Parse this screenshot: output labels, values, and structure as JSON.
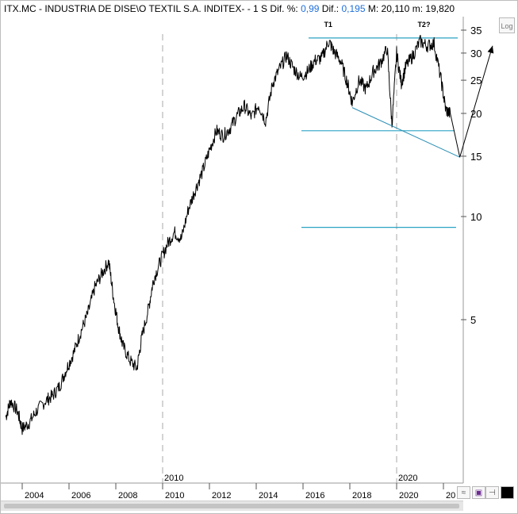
{
  "header": {
    "symbol": "ITX.MC - INDUSTRIA DE DISE\\O TEXTIL S.A. INDITEX-  -  1 S",
    "dif_pct_label": "Dif. %:",
    "dif_pct_value": "0,99",
    "dif_label": "Dif.:",
    "dif_value": "0,195",
    "max_label": "M:",
    "max_value": "20,110",
    "min_label": "m:",
    "min_value": "19,820"
  },
  "toolbar": {
    "log_label": "Log"
  },
  "chart_data": {
    "type": "line",
    "yscale": "log",
    "ylim": [
      2.2,
      38
    ],
    "y_ticks": [
      "35",
      "30",
      "25",
      "20",
      "15",
      "10",
      "5"
    ],
    "x_ticks": [
      "2004",
      "2006",
      "2008",
      "2010",
      "2012",
      "2014",
      "2016",
      "2018",
      "2020",
      "20"
    ],
    "x_marker_labels": [
      "2010",
      "2020"
    ],
    "annotations": [
      "T1",
      "T2?"
    ],
    "series": [
      {
        "x": [
          2003.3,
          2003.5,
          2003.8,
          2004.0,
          2004.3,
          2004.6,
          2005.0,
          2005.3,
          2005.6,
          2005.9,
          2006.2,
          2006.5,
          2006.8,
          2007.1,
          2007.4,
          2007.7,
          2007.9,
          2008.1,
          2008.3,
          2008.6,
          2008.9,
          2009.1,
          2009.4,
          2009.6,
          2009.9,
          2010.2,
          2010.5,
          2010.8,
          2011.1,
          2011.4,
          2011.7,
          2012.0,
          2012.3,
          2012.6,
          2012.9,
          2013.2,
          2013.5,
          2013.8,
          2014.1,
          2014.4,
          2014.7,
          2015.0,
          2015.3,
          2015.6,
          2015.9,
          2016.2,
          2016.5,
          2016.8,
          2017.1,
          2017.3,
          2017.6,
          2017.9,
          2018.1,
          2018.4,
          2018.7,
          2019.0,
          2019.3,
          2019.6,
          2019.8,
          2020.0,
          2020.2,
          2020.4,
          2020.7,
          2021.0,
          2021.3,
          2021.6,
          2021.9,
          2022.1,
          2022.3
        ],
        "values": [
          2.6,
          2.9,
          2.7,
          2.4,
          2.5,
          2.7,
          2.9,
          3.0,
          3.2,
          3.6,
          4.0,
          4.6,
          5.2,
          6.2,
          6.8,
          7.4,
          5.8,
          4.8,
          4.2,
          3.8,
          3.6,
          4.4,
          5.4,
          6.5,
          7.4,
          8.3,
          9.0,
          8.6,
          10.5,
          12.0,
          13.5,
          15.6,
          17.8,
          17.2,
          18.2,
          19.8,
          21.0,
          19.5,
          21.2,
          19.0,
          24.5,
          27.0,
          29.5,
          27.0,
          25.5,
          26.5,
          28.5,
          29.0,
          32.5,
          30.5,
          28.5,
          24.5,
          21.5,
          25.0,
          23.5,
          26.5,
          28.0,
          31.0,
          18.5,
          30.0,
          24.5,
          27.5,
          29.5,
          32.5,
          31.5,
          32.0,
          25.0,
          20.5,
          19.9
        ]
      }
    ],
    "horizontal_lines": [
      33.2,
      17.8,
      9.3
    ],
    "trendlines": [
      {
        "from": [
          2018.1,
          20.8
        ],
        "to": [
          2022.7,
          14.9
        ]
      },
      {
        "from": [
          2022.3,
          19.9
        ],
        "to": [
          2022.7,
          14.9
        ]
      },
      {
        "from": [
          2022.7,
          14.9
        ],
        "to": [
          2024.1,
          31.5
        ]
      }
    ],
    "xlim": [
      2003.1,
      2024.3
    ],
    "grid": false,
    "legend": "none"
  }
}
